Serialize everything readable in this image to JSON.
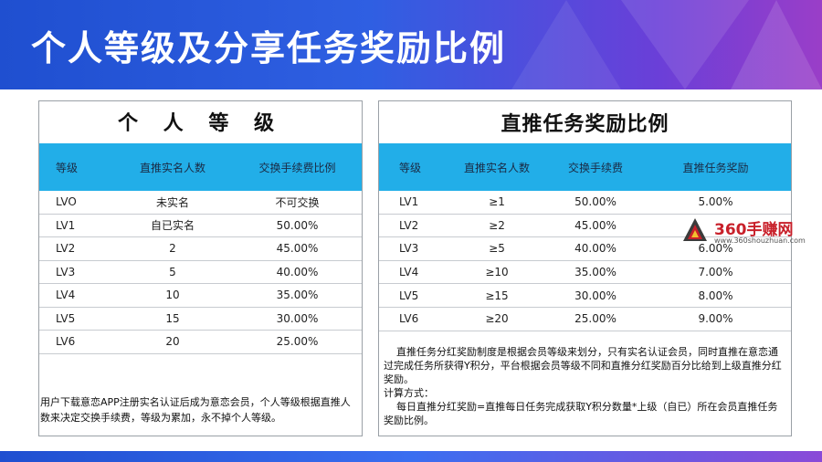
{
  "title": "个人等级及分享任务奖励比例",
  "left_panel": {
    "title": "个 人 等 级",
    "headers": [
      "等级",
      "直推实名人数",
      "交换手续费比例"
    ],
    "rows": [
      [
        "LVO",
        "未实名",
        "不可交换"
      ],
      [
        "LV1",
        "自已实名",
        "50.00%"
      ],
      [
        "LV2",
        "2",
        "45.00%"
      ],
      [
        "LV3",
        "5",
        "40.00%"
      ],
      [
        "LV4",
        "10",
        "35.00%"
      ],
      [
        "LV5",
        "15",
        "30.00%"
      ],
      [
        "LV6",
        "20",
        "25.00%"
      ]
    ],
    "note": "用户下载意恋APP注册实名认证后成为意恋会员，个人等级根据直推人数来决定交换手续费，等级为累加，永不掉个人等级。"
  },
  "right_panel": {
    "title": "直推任务奖励比例",
    "headers": [
      "等级",
      "直推实名人数",
      "交换手续费",
      "直推任务奖励"
    ],
    "rows": [
      [
        "LV1",
        "≥1",
        "50.00%",
        "5.00%"
      ],
      [
        "LV2",
        "≥2",
        "45.00%",
        ""
      ],
      [
        "LV3",
        "≥5",
        "40.00%",
        "6.00%"
      ],
      [
        "LV4",
        "≥10",
        "35.00%",
        "7.00%"
      ],
      [
        "LV5",
        "≥15",
        "30.00%",
        "8.00%"
      ],
      [
        "LV6",
        "≥20",
        "25.00%",
        "9.00%"
      ]
    ],
    "note_para1": "直推任务分红奖励制度是根据会员等级来划分，只有实名认证会员，同时直推在意恋通过完成任务所获得Y积分，平台根据会员等级不同和直推分红奖励百分比给到上级直推分红奖励。",
    "note_label": "计算方式：",
    "note_formula": "每日直推分红奖励=直推每日任务完成获取Y积分数量*上级（自已）所在会员直推任务奖励比例。"
  },
  "watermark": {
    "text": "360手赚网",
    "url": "www.360shouzhuan.com"
  },
  "colors": {
    "banner_start": "#1f4fd0",
    "banner_end": "#9a3ec8",
    "table_header": "#22aee8",
    "watermark_red": "#c8202a"
  }
}
